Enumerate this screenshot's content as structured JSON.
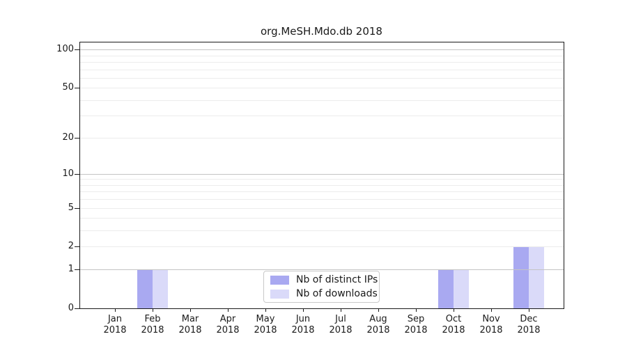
{
  "title": "org.MeSH.Mdo.db 2018",
  "chart_data": {
    "type": "bar",
    "title": "org.MeSH.Mdo.db 2018",
    "categories": [
      "Jan 2018",
      "Feb 2018",
      "Mar 2018",
      "Apr 2018",
      "May 2018",
      "Jun 2018",
      "Jul 2018",
      "Aug 2018",
      "Sep 2018",
      "Oct 2018",
      "Nov 2018",
      "Dec 2018"
    ],
    "series": [
      {
        "name": "Nb of distinct IPs",
        "color": "#a9a9f1",
        "values": [
          0,
          1,
          0,
          0,
          0,
          0,
          0,
          0,
          0,
          1,
          0,
          2
        ]
      },
      {
        "name": "Nb of downloads",
        "color": "#dadaf9",
        "values": [
          0,
          1,
          0,
          0,
          0,
          0,
          0,
          0,
          0,
          1,
          0,
          2
        ]
      }
    ],
    "xlabel": "",
    "ylabel": "",
    "yscale": "log1p",
    "ylim": [
      0,
      115
    ],
    "yticks_labeled": [
      0,
      1,
      2,
      5,
      10,
      20,
      50,
      100
    ],
    "ygrid_major": [
      1,
      10,
      100
    ],
    "ygrid_minor": [
      2,
      3,
      4,
      5,
      6,
      7,
      8,
      9,
      20,
      30,
      40,
      50,
      60,
      70,
      80,
      90
    ],
    "grid": "horizontal",
    "grid_above_bars": true,
    "legend_position": "lower center",
    "colors": {
      "background": "#ffffff",
      "spine": "#1a1a1a",
      "grid_major": "#c4c4c4",
      "grid_minor": "#ececec",
      "text": "#1a1a1a",
      "legend_border": "#c9c9c9",
      "legend_background": "#ffffff"
    }
  }
}
